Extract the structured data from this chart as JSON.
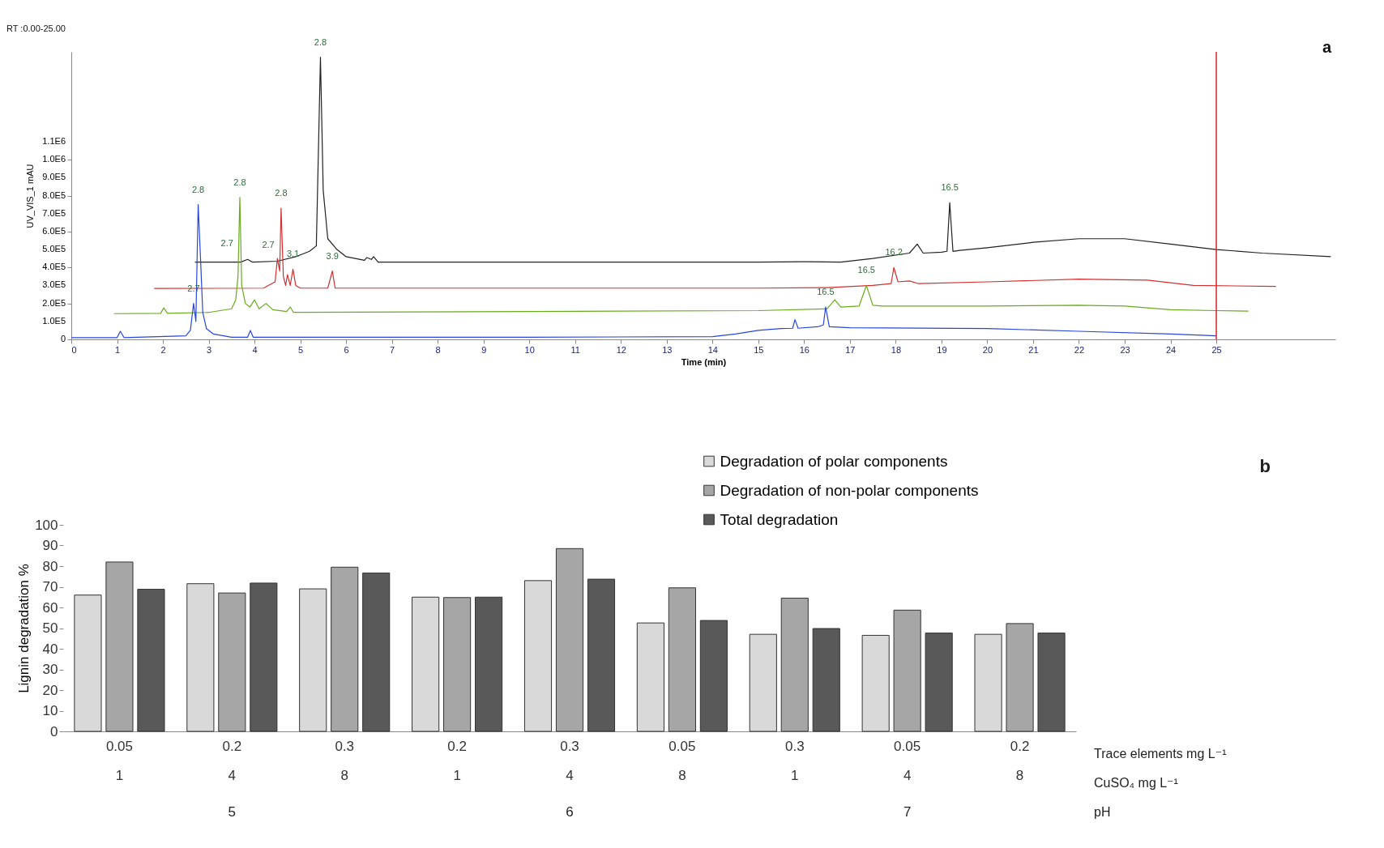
{
  "chart_data": [
    {
      "type": "line",
      "xlabel": "Time (min)",
      "ylabel": "UV_VIS_1 mAU",
      "xlim": [
        0,
        27.6
      ],
      "xticks": [
        0,
        1,
        2,
        3,
        4,
        5,
        6,
        7,
        8,
        9,
        10,
        11,
        12,
        13,
        14,
        15,
        16,
        17,
        18,
        19,
        20,
        21,
        22,
        23,
        24,
        25
      ],
      "ylim": [
        0,
        1600000
      ],
      "yticks": [
        0,
        {
          "value": 100000,
          "label": "1.0E5"
        },
        {
          "value": 200000,
          "label": "2.0E5"
        },
        {
          "value": 300000,
          "label": "3.0E5"
        },
        {
          "value": 400000,
          "label": "4.0E5"
        },
        {
          "value": 500000,
          "label": "5.0E5"
        },
        {
          "value": 600000,
          "label": "6.0E5"
        },
        {
          "value": 700000,
          "label": "7.0E5"
        },
        {
          "value": 800000,
          "label": "8.0E5"
        },
        {
          "value": 900000,
          "label": "9.0E5"
        },
        {
          "value": 1000000,
          "label": "1.0E6"
        },
        {
          "value": 1100000,
          "label": "1.1E6"
        }
      ],
      "series": [
        {
          "color": "#222222",
          "x": [
            2.7,
            3.7,
            3.85,
            3.95,
            4.5,
            4.9,
            5.2,
            5.35,
            5.44,
            5.5,
            5.6,
            5.8,
            6.0,
            6.4,
            6.45,
            6.55,
            6.6,
            6.7,
            7,
            10,
            14,
            15,
            16,
            16.8,
            17.5,
            18.3,
            18.47,
            18.6,
            19.0,
            19.12,
            19.18,
            19.25,
            19.4,
            20,
            21,
            22,
            23,
            24,
            25,
            26,
            27.5
          ],
          "values": [
            430000,
            430000,
            445000,
            430000,
            435000,
            460000,
            490000,
            520000,
            1570000,
            830000,
            560000,
            500000,
            460000,
            440000,
            455000,
            445000,
            460000,
            430000,
            430000,
            430000,
            430000,
            430000,
            432000,
            430000,
            450000,
            480000,
            530000,
            480000,
            485000,
            490000,
            760000,
            490000,
            495000,
            510000,
            540000,
            560000,
            560000,
            530000,
            500000,
            480000,
            460000
          ]
        },
        {
          "color": "#d32f2f",
          "x": [
            1.81,
            4.2,
            4.3,
            4.45,
            4.5,
            4.55,
            4.58,
            4.63,
            4.68,
            4.72,
            4.78,
            4.84,
            4.9,
            5.0,
            5.6,
            5.7,
            5.76,
            6,
            10,
            15,
            16.5,
            17.5,
            17.9,
            17.96,
            18.05,
            18.3,
            18.5,
            20,
            22,
            23.5,
            24.5,
            26.3
          ],
          "values": [
            283000,
            285000,
            300000,
            320000,
            450000,
            380000,
            730000,
            350000,
            300000,
            360000,
            300000,
            390000,
            300000,
            285000,
            285000,
            380000,
            285000,
            285000,
            285000,
            285000,
            288000,
            300000,
            310000,
            400000,
            320000,
            325000,
            310000,
            320000,
            335000,
            330000,
            300000,
            295000
          ]
        },
        {
          "color": "#6aaa1e",
          "x": [
            0.93,
            1.95,
            2.02,
            2.1,
            3.0,
            3.5,
            3.59,
            3.64,
            3.68,
            3.72,
            3.8,
            3.9,
            4.0,
            4.1,
            4.25,
            4.4,
            4.7,
            4.78,
            4.85,
            5,
            10,
            15,
            16.5,
            16.67,
            16.8,
            17.2,
            17.36,
            17.5,
            17.7,
            20,
            22,
            23,
            24,
            25,
            25.7
          ],
          "values": [
            143000,
            145000,
            175000,
            145000,
            150000,
            170000,
            220000,
            350000,
            790000,
            300000,
            200000,
            180000,
            220000,
            170000,
            200000,
            165000,
            155000,
            180000,
            150000,
            150000,
            155000,
            160000,
            170000,
            220000,
            180000,
            185000,
            300000,
            190000,
            185000,
            185000,
            190000,
            185000,
            165000,
            160000,
            157000
          ]
        },
        {
          "color": "#2846d8",
          "x": [
            0,
            1.0,
            1.07,
            1.15,
            2.5,
            2.6,
            2.67,
            2.72,
            2.77,
            2.82,
            2.87,
            2.95,
            3.1,
            3.5,
            3.85,
            3.91,
            3.97,
            10,
            14,
            14.5,
            15,
            15.5,
            15.75,
            15.8,
            15.87,
            16.3,
            16.42,
            16.47,
            16.55,
            17,
            20,
            22,
            24,
            25
          ],
          "values": [
            10000,
            10000,
            45000,
            10000,
            20000,
            50000,
            200000,
            100000,
            750000,
            460000,
            150000,
            60000,
            30000,
            12000,
            12000,
            50000,
            12000,
            12000,
            15000,
            30000,
            50000,
            60000,
            62000,
            110000,
            62000,
            70000,
            80000,
            180000,
            70000,
            65000,
            60000,
            45000,
            30000,
            20000
          ]
        }
      ],
      "ref_lines": [
        {
          "axis": "x",
          "value": 25,
          "color": "#e02020"
        }
      ],
      "annotations": [
        "RT :0.00-25.00",
        "a",
        {
          "text": "2.8",
          "x": 5.44,
          "y": 1570000
        },
        {
          "text": "16.5",
          "x": 19.18,
          "y": 760000
        },
        {
          "text": "2.8",
          "x": 4.58,
          "y": 730000
        },
        {
          "text": "2.7",
          "x": 4.3,
          "y": 440000
        },
        {
          "text": "3.1",
          "x": 4.84,
          "y": 390000
        },
        {
          "text": "3.9",
          "x": 5.7,
          "y": 380000
        },
        {
          "text": "16.2",
          "x": 17.96,
          "y": 400000
        },
        {
          "text": "2.8",
          "x": 3.68,
          "y": 790000
        },
        {
          "text": "2.7",
          "x": 3.4,
          "y": 450000
        },
        {
          "text": "16.5",
          "x": 17.36,
          "y": 300000
        },
        {
          "text": "2.8",
          "x": 2.77,
          "y": 750000
        },
        {
          "text": "2.7",
          "x": 2.67,
          "y": 200000
        },
        {
          "text": "16.5",
          "x": 16.47,
          "y": 180000
        }
      ]
    },
    {
      "type": "bar",
      "ylabel": "Lignin degradation %",
      "legend": "top right",
      "categories": [
        "0.05\n1",
        "0.2\n4",
        "0.3\n8",
        "0.2\n1",
        "0.3\n4",
        "0.05\n8",
        "0.3\n1",
        "0.05\n4",
        "0.2\n8"
      ],
      "ylim": [
        0,
        100
      ],
      "yticks": [
        0,
        10,
        20,
        30,
        40,
        50,
        60,
        70,
        80,
        90,
        100
      ],
      "series": [
        {
          "name": "Degradation of polar components",
          "color": "#d9d9d9",
          "values": [
            66,
            71.5,
            69,
            65,
            73,
            52.5,
            47,
            46.5,
            47
          ]
        },
        {
          "name": "Degradation of non-polar components",
          "color": "#a6a6a6",
          "values": [
            82,
            67,
            79.5,
            64.8,
            88.5,
            69.5,
            64.5,
            58.7,
            52.2
          ]
        },
        {
          "name": "Total degradation",
          "color": "#595959",
          "values": [
            68.8,
            71.8,
            76.7,
            65,
            73.7,
            53.7,
            49.8,
            47.6,
            47.6
          ]
        }
      ],
      "annotations": [
        "b",
        "Trace elements mg L⁻¹",
        "CuSO₄ mg L⁻¹",
        "pH",
        "5",
        "6",
        "7"
      ]
    }
  ]
}
